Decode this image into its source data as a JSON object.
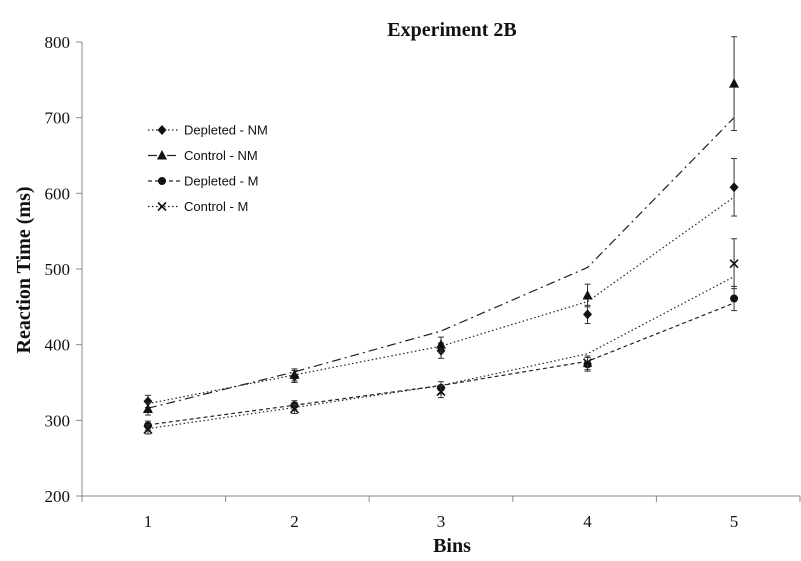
{
  "chart_data": {
    "type": "line",
    "title": "Experiment 2B",
    "xlabel": "Bins",
    "ylabel": "Reaction Time (ms)",
    "categories": [
      "1",
      "2",
      "3",
      "4",
      "5"
    ],
    "xlim": [
      0.55,
      5.45
    ],
    "ylim": [
      200,
      800
    ],
    "yticks": [
      "200",
      "300",
      "400",
      "500",
      "600",
      "700",
      "800"
    ],
    "grid": false,
    "legend_position": "upper-left",
    "series": [
      {
        "name": "Depleted - NM",
        "marker": "diamond",
        "dash": "dotted",
        "values": [
          325,
          358,
          392,
          440,
          608
        ],
        "errors": [
          8,
          8,
          10,
          12,
          38
        ],
        "trend": [
          322,
          360,
          398,
          457,
          595
        ]
      },
      {
        "name": "Control - NM",
        "marker": "triangle",
        "dash": "dash-dot",
        "values": [
          315,
          360,
          400,
          465,
          745
        ],
        "errors": [
          8,
          8,
          10,
          15,
          62
        ],
        "trend": [
          316,
          364,
          418,
          502,
          700
        ]
      },
      {
        "name": "Depleted - M",
        "marker": "circle",
        "dash": "dashed",
        "values": [
          293,
          320,
          343,
          374,
          461
        ],
        "errors": [
          6,
          6,
          8,
          9,
          16
        ],
        "trend": [
          294,
          320,
          346,
          378,
          455
        ]
      },
      {
        "name": "Control - M",
        "marker": "x",
        "dash": "dotted",
        "values": [
          288,
          315,
          338,
          376,
          507
        ],
        "errors": [
          6,
          6,
          8,
          9,
          33
        ],
        "trend": [
          289,
          317,
          346,
          388,
          490
        ]
      }
    ]
  }
}
